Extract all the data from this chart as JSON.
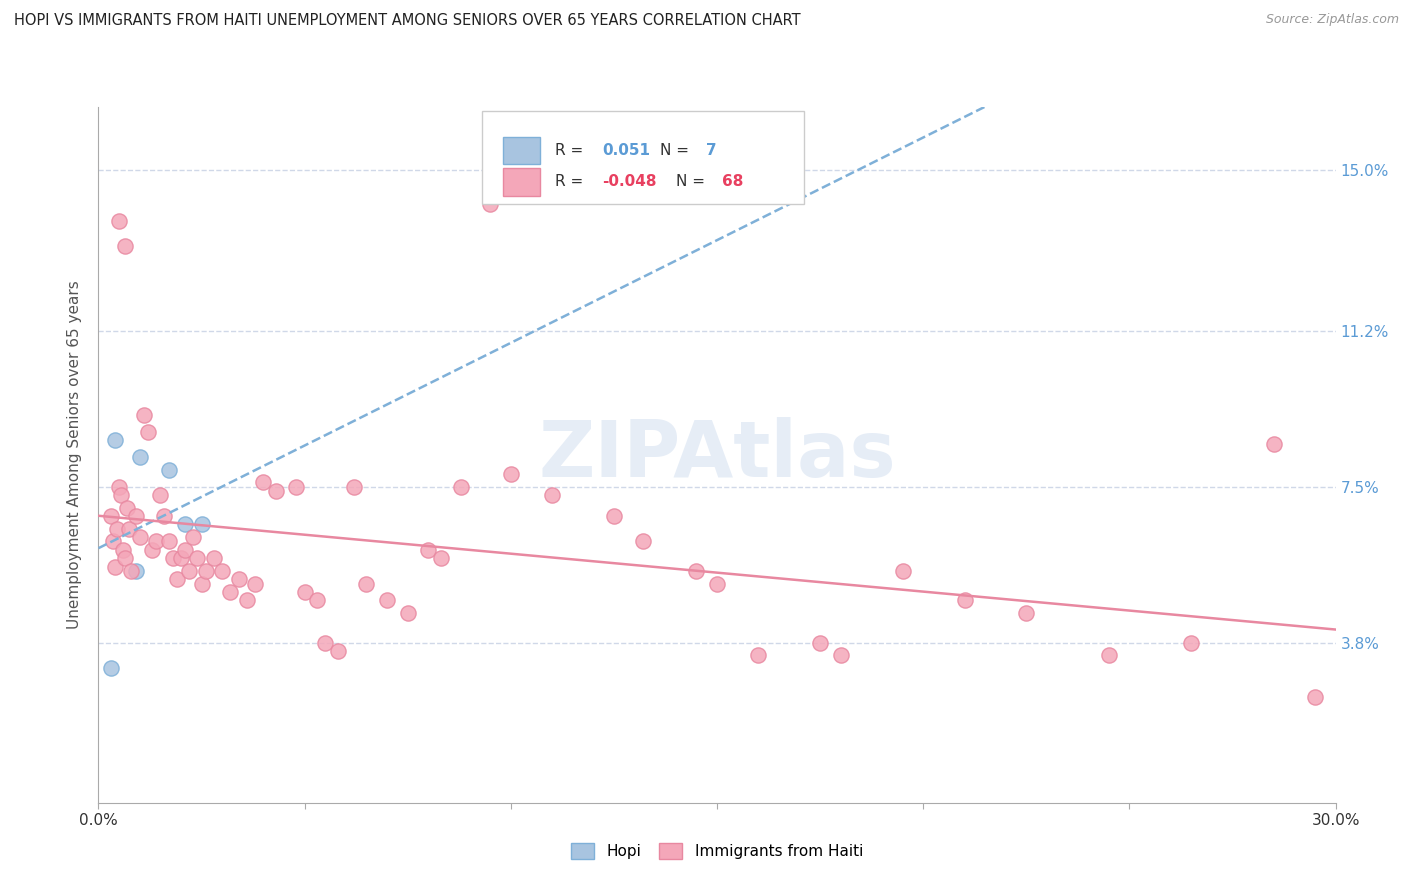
{
  "title": "HOPI VS IMMIGRANTS FROM HAITI UNEMPLOYMENT AMONG SENIORS OVER 65 YEARS CORRELATION CHART",
  "source": "Source: ZipAtlas.com",
  "ylabel": "Unemployment Among Seniors over 65 years",
  "ytick_labels": [
    "3.8%",
    "7.5%",
    "11.2%",
    "15.0%"
  ],
  "ytick_values": [
    3.8,
    7.5,
    11.2,
    15.0
  ],
  "xlim": [
    0.0,
    30.0
  ],
  "ylim": [
    0.0,
    16.5
  ],
  "watermark": "ZIPAtlas",
  "legend": {
    "hopi_r": "0.051",
    "hopi_n": "7",
    "haiti_r": "-0.048",
    "haiti_n": "68"
  },
  "hopi_color": "#a8c4e0",
  "haiti_color": "#f4a7b9",
  "hopi_edge_color": "#7fb0d8",
  "haiti_edge_color": "#e888a0",
  "hopi_line_color": "#7fb0d8",
  "haiti_line_color": "#e888a0",
  "hopi_scatter": [
    [
      0.4,
      8.6
    ],
    [
      1.0,
      8.2
    ],
    [
      1.7,
      7.9
    ],
    [
      2.1,
      6.6
    ],
    [
      2.5,
      6.6
    ],
    [
      0.3,
      3.2
    ],
    [
      0.9,
      5.5
    ]
  ],
  "haiti_scatter": [
    [
      0.3,
      6.8
    ],
    [
      0.35,
      6.2
    ],
    [
      0.4,
      5.6
    ],
    [
      0.45,
      6.5
    ],
    [
      0.5,
      7.5
    ],
    [
      0.55,
      7.3
    ],
    [
      0.6,
      6.0
    ],
    [
      0.65,
      5.8
    ],
    [
      0.7,
      7.0
    ],
    [
      0.75,
      6.5
    ],
    [
      0.8,
      5.5
    ],
    [
      0.9,
      6.8
    ],
    [
      1.0,
      6.3
    ],
    [
      1.1,
      9.2
    ],
    [
      1.2,
      8.8
    ],
    [
      1.3,
      6.0
    ],
    [
      1.4,
      6.2
    ],
    [
      1.5,
      7.3
    ],
    [
      1.6,
      6.8
    ],
    [
      1.7,
      6.2
    ],
    [
      1.8,
      5.8
    ],
    [
      1.9,
      5.3
    ],
    [
      2.0,
      5.8
    ],
    [
      2.1,
      6.0
    ],
    [
      2.2,
      5.5
    ],
    [
      2.3,
      6.3
    ],
    [
      2.4,
      5.8
    ],
    [
      2.5,
      5.2
    ],
    [
      2.6,
      5.5
    ],
    [
      2.8,
      5.8
    ],
    [
      3.0,
      5.5
    ],
    [
      3.2,
      5.0
    ],
    [
      3.4,
      5.3
    ],
    [
      3.6,
      4.8
    ],
    [
      3.8,
      5.2
    ],
    [
      4.0,
      7.6
    ],
    [
      4.3,
      7.4
    ],
    [
      4.8,
      7.5
    ],
    [
      5.0,
      5.0
    ],
    [
      5.3,
      4.8
    ],
    [
      5.5,
      3.8
    ],
    [
      5.8,
      3.6
    ],
    [
      6.2,
      7.5
    ],
    [
      6.5,
      5.2
    ],
    [
      7.0,
      4.8
    ],
    [
      7.5,
      4.5
    ],
    [
      8.0,
      6.0
    ],
    [
      8.3,
      5.8
    ],
    [
      8.8,
      7.5
    ],
    [
      9.5,
      14.2
    ],
    [
      10.0,
      7.8
    ],
    [
      11.0,
      7.3
    ],
    [
      12.5,
      6.8
    ],
    [
      13.2,
      6.2
    ],
    [
      14.5,
      5.5
    ],
    [
      15.0,
      5.2
    ],
    [
      16.0,
      3.5
    ],
    [
      17.5,
      3.8
    ],
    [
      18.0,
      3.5
    ],
    [
      19.5,
      5.5
    ],
    [
      21.0,
      4.8
    ],
    [
      22.5,
      4.5
    ],
    [
      24.5,
      3.5
    ],
    [
      26.5,
      3.8
    ],
    [
      28.5,
      8.5
    ],
    [
      29.5,
      2.5
    ],
    [
      0.5,
      13.8
    ],
    [
      0.65,
      13.2
    ]
  ],
  "background_color": "#ffffff",
  "grid_color": "#d0d8e8",
  "hopi_trendline_start_x": 0.0,
  "hopi_trendline_end_x": 3.5,
  "haiti_trendline_end_x": 30.0
}
